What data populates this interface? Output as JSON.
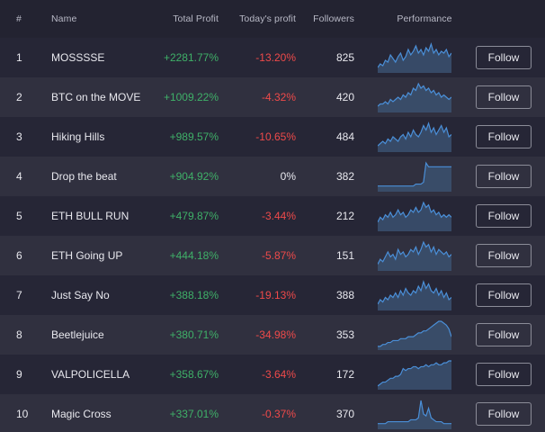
{
  "header": {
    "rank": "#",
    "name": "Name",
    "total_profit": "Total Profit",
    "today_profit": "Today's profit",
    "followers": "Followers",
    "performance": "Performance"
  },
  "follow_label": "Follow",
  "colors": {
    "positive": "#3fb068",
    "negative": "#ef4a4a",
    "spark_line": "#4a8fd8",
    "spark_fill": "#3b5170"
  },
  "rows": [
    {
      "rank": "1",
      "name": "MOSSSSE",
      "total_profit": "+2281.77%",
      "today_profit": "-13.20%",
      "today_sign": "neg",
      "followers": "825",
      "performance": [
        2,
        4,
        3,
        6,
        5,
        9,
        7,
        5,
        8,
        10,
        6,
        8,
        12,
        9,
        11,
        14,
        10,
        12,
        9,
        13,
        11,
        15,
        10,
        12,
        9,
        11,
        10,
        12,
        8,
        10
      ]
    },
    {
      "rank": "2",
      "name": "BTC on the MOVE",
      "total_profit": "+1009.22%",
      "today_profit": "-4.32%",
      "today_sign": "neg",
      "followers": "420",
      "performance": [
        2,
        3,
        3,
        4,
        3,
        5,
        4,
        5,
        6,
        5,
        7,
        6,
        8,
        7,
        10,
        9,
        12,
        10,
        11,
        9,
        10,
        8,
        9,
        7,
        8,
        6,
        7,
        6,
        5,
        6
      ]
    },
    {
      "rank": "3",
      "name": "Hiking Hills",
      "total_profit": "+989.57%",
      "today_profit": "-10.65%",
      "today_sign": "neg",
      "followers": "484",
      "performance": [
        2,
        3,
        4,
        3,
        5,
        4,
        6,
        5,
        4,
        6,
        7,
        5,
        8,
        6,
        9,
        7,
        6,
        8,
        11,
        9,
        12,
        8,
        10,
        7,
        9,
        11,
        8,
        10,
        6,
        7
      ]
    },
    {
      "rank": "4",
      "name": "Drop the beat",
      "total_profit": "+904.92%",
      "today_profit": "0%",
      "today_sign": "zero",
      "followers": "382",
      "performance": [
        2,
        2,
        2,
        2,
        2,
        2,
        2,
        2,
        2,
        2,
        2,
        2,
        2,
        2,
        2,
        3,
        3,
        3,
        4,
        14,
        12,
        12,
        12,
        12,
        12,
        12,
        12,
        12,
        12,
        12
      ]
    },
    {
      "rank": "5",
      "name": "ETH BULL RUN",
      "total_profit": "+479.87%",
      "today_profit": "-3.44%",
      "today_sign": "neg",
      "followers": "212",
      "performance": [
        3,
        5,
        4,
        6,
        5,
        7,
        5,
        6,
        8,
        6,
        7,
        5,
        6,
        8,
        7,
        9,
        7,
        8,
        11,
        9,
        10,
        7,
        8,
        6,
        7,
        5,
        6,
        5,
        6,
        5
      ]
    },
    {
      "rank": "6",
      "name": "ETH Going UP",
      "total_profit": "+444.18%",
      "today_profit": "-5.87%",
      "today_sign": "neg",
      "followers": "151",
      "performance": [
        2,
        4,
        3,
        5,
        7,
        5,
        6,
        4,
        8,
        6,
        7,
        5,
        6,
        8,
        7,
        9,
        6,
        8,
        11,
        9,
        10,
        7,
        9,
        6,
        8,
        7,
        6,
        7,
        5,
        6
      ]
    },
    {
      "rank": "7",
      "name": "Just Say No",
      "total_profit": "+388.18%",
      "today_profit": "-19.13%",
      "today_sign": "neg",
      "followers": "388",
      "performance": [
        2,
        4,
        3,
        5,
        4,
        6,
        5,
        7,
        5,
        8,
        6,
        9,
        7,
        6,
        8,
        7,
        10,
        8,
        12,
        9,
        11,
        8,
        7,
        9,
        6,
        8,
        5,
        7,
        4,
        5
      ]
    },
    {
      "rank": "8",
      "name": "Beetlejuice",
      "total_profit": "+380.71%",
      "today_profit": "-34.98%",
      "today_sign": "neg",
      "followers": "353",
      "performance": [
        1,
        1,
        2,
        2,
        3,
        3,
        4,
        4,
        4,
        5,
        5,
        5,
        6,
        6,
        6,
        7,
        8,
        8,
        9,
        9,
        10,
        11,
        12,
        13,
        14,
        14,
        13,
        12,
        10,
        6
      ]
    },
    {
      "rank": "9",
      "name": "VALPOLICELLA",
      "total_profit": "+358.67%",
      "today_profit": "-3.64%",
      "today_sign": "neg",
      "followers": "172",
      "performance": [
        1,
        2,
        3,
        3,
        4,
        5,
        5,
        6,
        6,
        7,
        10,
        9,
        10,
        10,
        11,
        11,
        10,
        11,
        11,
        12,
        11,
        12,
        12,
        13,
        12,
        12,
        13,
        13,
        14,
        14
      ]
    },
    {
      "rank": "10",
      "name": "Magic Cross",
      "total_profit": "+337.01%",
      "today_profit": "-0.37%",
      "today_sign": "neg",
      "followers": "370",
      "performance": [
        2,
        2,
        2,
        2,
        3,
        3,
        3,
        3,
        3,
        3,
        3,
        3,
        3,
        4,
        4,
        4,
        5,
        14,
        7,
        6,
        10,
        5,
        4,
        3,
        3,
        3,
        2,
        2,
        2,
        2
      ]
    }
  ]
}
